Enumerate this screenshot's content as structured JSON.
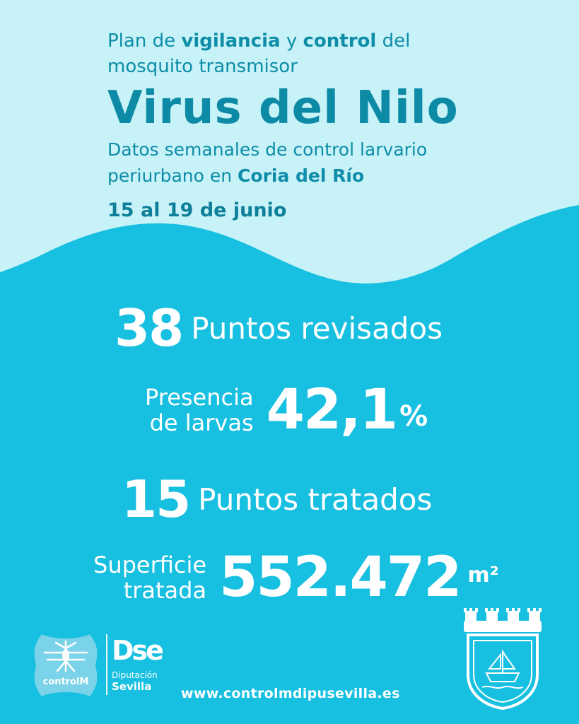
{
  "header": {
    "intro_1a": "Plan de ",
    "intro_1b": "vigilancia",
    "intro_1c": " y ",
    "intro_1d": "control",
    "intro_1e": " del",
    "intro_2": "mosquito transmisor",
    "title": "Virus del Nilo",
    "sub_1": "Datos semanales de control larvario",
    "sub_2a": "periurbano en ",
    "sub_2b": "Coria del Río",
    "date": "15 al 19 de junio"
  },
  "stats": {
    "points_reviewed_value": "38",
    "points_reviewed_label": "Puntos revisados",
    "larvae_label_1": "Presencia",
    "larvae_label_2": "de larvas",
    "larvae_value": "42,1",
    "larvae_unit": "%",
    "points_treated_value": "15",
    "points_treated_label": "Puntos tratados",
    "surface_label_1": "Superficie",
    "surface_label_2": "tratada",
    "surface_value": "552.472",
    "surface_unit": "m²"
  },
  "footer": {
    "controlm_label": "controlM",
    "dse_logo": "Dse",
    "dse_sub_1": "Diputación",
    "dse_sub_2": "Sevilla",
    "website": "www.controlmdipusevilla.es"
  },
  "colors": {
    "background": "#17bfe0",
    "top_band": "#c7f2f8",
    "title": "#0d8aa5",
    "text_light": "#ffffff"
  }
}
